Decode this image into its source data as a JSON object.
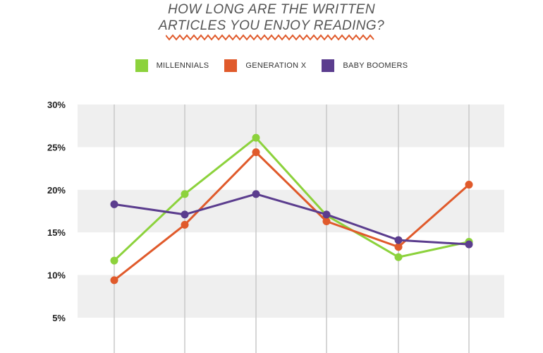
{
  "title_line1": "HOW LONG ARE THE WRITTEN",
  "title_line2": "ARTICLES YOU ENJOY READING?",
  "colors": {
    "millennials": "#8cd23c",
    "generation_x": "#e05a2b",
    "baby_boomers": "#5b3d8e",
    "band": "#efefef",
    "gridline": "#c8c8c8",
    "zigzag": "#e05a2b"
  },
  "chart_data": {
    "type": "line",
    "title": "HOW LONG ARE THE WRITTEN ARTICLES YOU ENJOY READING?",
    "xlabel": "",
    "ylabel": "",
    "x": [
      1,
      2,
      3,
      4,
      5,
      6
    ],
    "ylim": [
      5,
      30
    ],
    "yticks": [
      30,
      25,
      20,
      15,
      10,
      5
    ],
    "ytick_labels": [
      "30%",
      "25%",
      "20%",
      "15%",
      "10%",
      "5%"
    ],
    "grid": "vertical lines, alternating horizontal bands",
    "legend_position": "top-center",
    "series": [
      {
        "name": "MILLENNIALS",
        "color": "#8cd23c",
        "values": [
          11.7,
          19.5,
          26.1,
          17.0,
          12.1,
          13.9
        ]
      },
      {
        "name": "GENERATION X",
        "color": "#e05a2b",
        "values": [
          9.4,
          15.9,
          24.4,
          16.3,
          13.3,
          20.6
        ]
      },
      {
        "name": "BABY BOOMERS",
        "color": "#5b3d8e",
        "values": [
          18.3,
          17.1,
          19.5,
          17.1,
          14.1,
          13.6
        ]
      }
    ]
  }
}
